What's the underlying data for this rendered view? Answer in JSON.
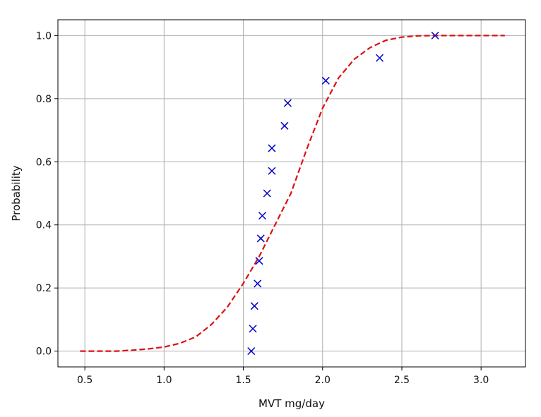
{
  "chart_data": {
    "type": "scatter",
    "title": "",
    "xlabel": "MVT mg/day",
    "ylabel": "Probability",
    "xlim": [
      0.33,
      3.28
    ],
    "ylim": [
      -0.05,
      1.05
    ],
    "xticks": [
      0.5,
      1.0,
      1.5,
      2.0,
      2.5,
      3.0
    ],
    "xtick_labels": [
      "0.5",
      "1.0",
      "1.5",
      "2.0",
      "2.5",
      "3.0"
    ],
    "yticks": [
      0.0,
      0.2,
      0.4,
      0.6,
      0.8,
      1.0
    ],
    "ytick_labels": [
      "0.0",
      "0.2",
      "0.4",
      "0.6",
      "0.8",
      "1.0"
    ],
    "grid": true,
    "legend": "none",
    "series": [
      {
        "kind": "scatter",
        "marker": "x",
        "color": "#0000cc",
        "x": [
          1.55,
          1.56,
          1.57,
          1.59,
          1.6,
          1.61,
          1.62,
          1.65,
          1.68,
          1.68,
          1.76,
          1.78,
          2.02,
          2.36,
          2.71
        ],
        "y": [
          0.0,
          0.071,
          0.143,
          0.214,
          0.286,
          0.357,
          0.429,
          0.5,
          0.571,
          0.643,
          0.714,
          0.786,
          0.857,
          0.929,
          1.0
        ]
      },
      {
        "kind": "line",
        "style": "dashed",
        "color": "#dd1111",
        "x": [
          0.47,
          0.6,
          0.7,
          0.8,
          0.9,
          1.0,
          1.1,
          1.2,
          1.3,
          1.4,
          1.5,
          1.6,
          1.7,
          1.8,
          1.9,
          2.0,
          2.1,
          2.2,
          2.3,
          2.4,
          2.5,
          2.6,
          2.7,
          2.8,
          2.9,
          3.0,
          3.15
        ],
        "y": [
          0.0,
          0.0,
          0.0,
          0.003,
          0.007,
          0.013,
          0.025,
          0.045,
          0.085,
          0.14,
          0.215,
          0.3,
          0.4,
          0.5,
          0.64,
          0.77,
          0.865,
          0.925,
          0.962,
          0.985,
          0.995,
          0.999,
          1.0,
          1.0,
          1.0,
          1.0,
          1.0
        ]
      }
    ]
  }
}
